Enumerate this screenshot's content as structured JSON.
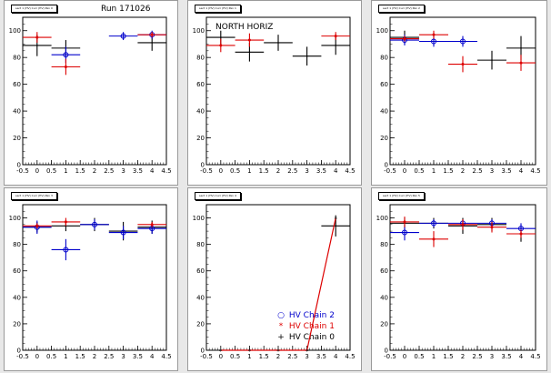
{
  "run_label": "Run 171026",
  "colors": {
    "chain0": "#000000",
    "chain1": "#dd0000",
    "chain2": "#0000cc"
  },
  "legend": {
    "entries": [
      {
        "label": "HV Chain 2",
        "marker": "o",
        "color": "#0000cc"
      },
      {
        "label": "HV Chain 1",
        "marker": "*",
        "color": "#dd0000"
      },
      {
        "label": "HV Chain 0",
        "marker": "+",
        "color": "#000000"
      }
    ]
  },
  "chart_data": [
    {
      "type": "scatter",
      "title": "sect 1 (HV) Curr (HV) Pan 0",
      "corner_label": "",
      "xlim": [
        -0.5,
        4.5
      ],
      "ylim": [
        0,
        110
      ],
      "x_ticks": [
        "-0.5",
        "0",
        "0.5",
        "1",
        "1.5",
        "2",
        "2.5",
        "3",
        "3.5",
        "4",
        "4.5"
      ],
      "y_ticks": [
        "0",
        "20",
        "40",
        "60",
        "80",
        "100"
      ],
      "series": [
        {
          "color": "#000000",
          "points": [
            {
              "x": 0,
              "y": 89,
              "ey": 8
            },
            {
              "x": 1,
              "y": 87,
              "ey": 6
            },
            {
              "x": 4,
              "y": 91,
              "ey": 6
            }
          ]
        },
        {
          "color": "#0000cc",
          "points": [
            {
              "x": 1,
              "y": 82,
              "ey": 6
            },
            {
              "x": 3,
              "y": 96,
              "ey": 3
            },
            {
              "x": 4,
              "y": 97,
              "ey": 3
            }
          ]
        },
        {
          "color": "#dd0000",
          "points": [
            {
              "x": 0,
              "y": 95,
              "ey": 4
            },
            {
              "x": 1,
              "y": 73,
              "ey": 6
            },
            {
              "x": 4,
              "y": 97,
              "ey": 2
            }
          ]
        }
      ]
    },
    {
      "type": "scatter",
      "title": "sect 1 (HV) Curr (HV) Pan 1",
      "corner_label": "NORTH HORIZ",
      "xlim": [
        -0.5,
        4.5
      ],
      "ylim": [
        0,
        110
      ],
      "x_ticks": [
        "-0.5",
        "0",
        "0.5",
        "1",
        "1.5",
        "2",
        "2.5",
        "3",
        "3.5",
        "4",
        "4.5"
      ],
      "y_ticks": [
        "0",
        "20",
        "40",
        "60",
        "80",
        "100"
      ],
      "series": [
        {
          "color": "#000000",
          "points": [
            {
              "x": 0,
              "y": 95,
              "ey": 5
            },
            {
              "x": 1,
              "y": 84,
              "ey": 7
            },
            {
              "x": 2,
              "y": 91,
              "ey": 6
            },
            {
              "x": 3,
              "y": 81,
              "ey": 7
            },
            {
              "x": 4,
              "y": 89,
              "ey": 7
            }
          ]
        },
        {
          "color": "#dd0000",
          "points": [
            {
              "x": 0,
              "y": 89,
              "ey": 5
            },
            {
              "x": 1,
              "y": 93,
              "ey": 5
            },
            {
              "x": 4,
              "y": 96,
              "ey": 3
            }
          ]
        }
      ]
    },
    {
      "type": "scatter",
      "title": "sect 1 (HV) Curr (HV) Pan 2",
      "corner_label": "",
      "xlim": [
        -0.5,
        4.5
      ],
      "ylim": [
        0,
        110
      ],
      "x_ticks": [
        "-0.5",
        "0",
        "0.5",
        "1",
        "1.5",
        "2",
        "2.5",
        "3",
        "3.5",
        "4",
        "4.5"
      ],
      "y_ticks": [
        "0",
        "20",
        "40",
        "60",
        "80",
        "100"
      ],
      "series": [
        {
          "color": "#000000",
          "points": [
            {
              "x": 0,
              "y": 95,
              "ey": 5
            },
            {
              "x": 3,
              "y": 78,
              "ey": 7
            },
            {
              "x": 4,
              "y": 87,
              "ey": 9
            }
          ]
        },
        {
          "color": "#0000cc",
          "points": [
            {
              "x": 0,
              "y": 93,
              "ey": 4
            },
            {
              "x": 1,
              "y": 92,
              "ey": 4
            },
            {
              "x": 2,
              "y": 92,
              "ey": 4
            }
          ]
        },
        {
          "color": "#dd0000",
          "points": [
            {
              "x": 0,
              "y": 94,
              "ey": 2
            },
            {
              "x": 1,
              "y": 97,
              "ey": 3
            },
            {
              "x": 2,
              "y": 75,
              "ey": 6
            },
            {
              "x": 4,
              "y": 76,
              "ey": 6
            }
          ]
        }
      ]
    },
    {
      "type": "scatter",
      "title": "sect 1 (HV) Curr (HV) Pan 3",
      "corner_label": "",
      "xlim": [
        -0.5,
        4.5
      ],
      "ylim": [
        0,
        110
      ],
      "x_ticks": [
        "-0.5",
        "0",
        "0.5",
        "1",
        "1.5",
        "2",
        "2.5",
        "3",
        "3.5",
        "4",
        "4.5"
      ],
      "y_ticks": [
        "0",
        "20",
        "40",
        "60",
        "80",
        "100"
      ],
      "series": [
        {
          "color": "#000000",
          "points": [
            {
              "x": 0,
              "y": 93,
              "ey": 4
            },
            {
              "x": 1,
              "y": 94,
              "ey": 4
            },
            {
              "x": 2,
              "y": 95,
              "ey": 5
            },
            {
              "x": 3,
              "y": 90,
              "ey": 7
            },
            {
              "x": 4,
              "y": 93,
              "ey": 5
            }
          ]
        },
        {
          "color": "#0000cc",
          "points": [
            {
              "x": 0,
              "y": 93,
              "ey": 5
            },
            {
              "x": 1,
              "y": 76,
              "ey": 8
            },
            {
              "x": 2,
              "y": 95,
              "ey": 4
            },
            {
              "x": 3,
              "y": 89,
              "ey": 5
            },
            {
              "x": 4,
              "y": 92,
              "ey": 4
            }
          ]
        },
        {
          "color": "#dd0000",
          "points": [
            {
              "x": 0,
              "y": 94,
              "ey": 2
            },
            {
              "x": 1,
              "y": 97,
              "ey": 3
            },
            {
              "x": 4,
              "y": 95,
              "ey": 2
            }
          ]
        }
      ]
    },
    {
      "type": "scatter",
      "title": "sect 1 (HV) Curr (HV) Pan 4",
      "corner_label": "",
      "xlim": [
        -0.5,
        4.5
      ],
      "ylim": [
        0,
        110
      ],
      "x_ticks": [
        "-0.5",
        "0",
        "0.5",
        "1",
        "1.5",
        "2",
        "2.5",
        "3",
        "3.5",
        "4",
        "4.5"
      ],
      "y_ticks": [
        "0",
        "20",
        "40",
        "60",
        "80",
        "100"
      ],
      "has_legend": true,
      "series": [
        {
          "color": "#000000",
          "points": [
            {
              "x": 4,
              "y": 94,
              "ey": 8
            }
          ]
        },
        {
          "color": "#dd0000",
          "line": true,
          "points": [
            {
              "x": 0,
              "y": 0
            },
            {
              "x": 1,
              "y": 0
            },
            {
              "x": 2,
              "y": 0
            },
            {
              "x": 3,
              "y": 0
            },
            {
              "x": 4,
              "y": 100
            }
          ]
        }
      ]
    },
    {
      "type": "scatter",
      "title": "sect 1 (HV) Curr (HV) Pan 5",
      "corner_label": "",
      "xlim": [
        -0.5,
        4.5
      ],
      "ylim": [
        0,
        110
      ],
      "x_ticks": [
        "-0.5",
        "0",
        "0.5",
        "1",
        "1.5",
        "2",
        "2.5",
        "3",
        "3.5",
        "4",
        "4.5"
      ],
      "y_ticks": [
        "0",
        "20",
        "40",
        "60",
        "80",
        "100"
      ],
      "series": [
        {
          "color": "#000000",
          "points": [
            {
              "x": 0,
              "y": 96,
              "ey": 4
            },
            {
              "x": 1,
              "y": 96,
              "ey": 4
            },
            {
              "x": 2,
              "y": 94,
              "ey": 6
            },
            {
              "x": 3,
              "y": 95,
              "ey": 5
            },
            {
              "x": 4,
              "y": 88,
              "ey": 6
            }
          ]
        },
        {
          "color": "#0000cc",
          "points": [
            {
              "x": 0,
              "y": 89,
              "ey": 6
            },
            {
              "x": 1,
              "y": 96,
              "ey": 3
            },
            {
              "x": 2,
              "y": 96,
              "ey": 3
            },
            {
              "x": 3,
              "y": 96,
              "ey": 3
            },
            {
              "x": 4,
              "y": 92,
              "ey": 4
            }
          ]
        },
        {
          "color": "#dd0000",
          "points": [
            {
              "x": 0,
              "y": 97,
              "ey": 4
            },
            {
              "x": 1,
              "y": 84,
              "ey": 6
            },
            {
              "x": 2,
              "y": 95,
              "ey": 4
            },
            {
              "x": 3,
              "y": 93,
              "ey": 4
            },
            {
              "x": 4,
              "y": 88,
              "ey": 3
            }
          ]
        }
      ]
    }
  ]
}
